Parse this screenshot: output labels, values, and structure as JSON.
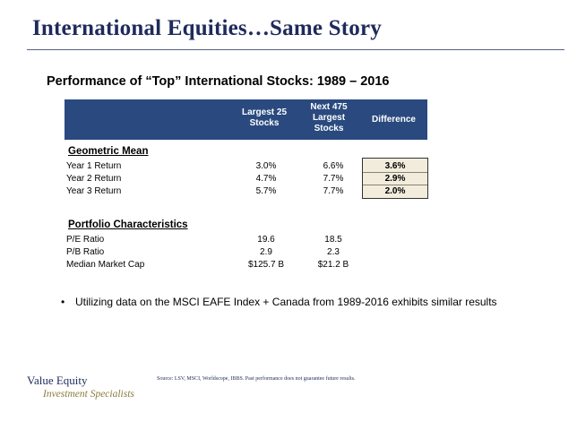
{
  "slide": {
    "title": "International Equities…Same Story",
    "subtitle": "Performance of “Top” International Stocks: 1989 – 2016"
  },
  "table": {
    "headers": {
      "col1": "Largest 25\nStocks",
      "col2": "Next 475\nLargest\nStocks",
      "col3": "Difference"
    },
    "geometric_mean": {
      "label": "Geometric Mean",
      "rows": [
        {
          "label": "Year 1 Return",
          "largest25": "3.0%",
          "next475": "6.6%",
          "difference": "3.6%"
        },
        {
          "label": "Year 2 Return",
          "largest25": "4.7%",
          "next475": "7.7%",
          "difference": "2.9%"
        },
        {
          "label": "Year 3 Return",
          "largest25": "5.7%",
          "next475": "7.7%",
          "difference": "2.0%"
        }
      ]
    },
    "portfolio": {
      "label": "Portfolio Characteristics",
      "rows": [
        {
          "label": "P/E Ratio",
          "largest25": "19.6",
          "next475": "18.5"
        },
        {
          "label": "P/B Ratio",
          "largest25": "2.9",
          "next475": "2.3"
        },
        {
          "label": "Median Market Cap",
          "largest25": "$125.7  B",
          "next475": "$21.2  B"
        }
      ]
    }
  },
  "bullet": {
    "marker": "•",
    "text": "Utilizing data on the MSCI EAFE Index + Canada from 1989-2016 exhibits similar results"
  },
  "footer": {
    "logo_line1": "Value Equity",
    "logo_line2": "Investment Specialists",
    "source": "Source: LSV, MSCI, Worldscope, IBBS. Past performance does not guarantee future results."
  },
  "colors": {
    "title": "#1f2a5c",
    "header_bg": "#2a4a7f",
    "difference_bg": "#f2ecdd",
    "logo_gold": "#8a7a3a"
  }
}
